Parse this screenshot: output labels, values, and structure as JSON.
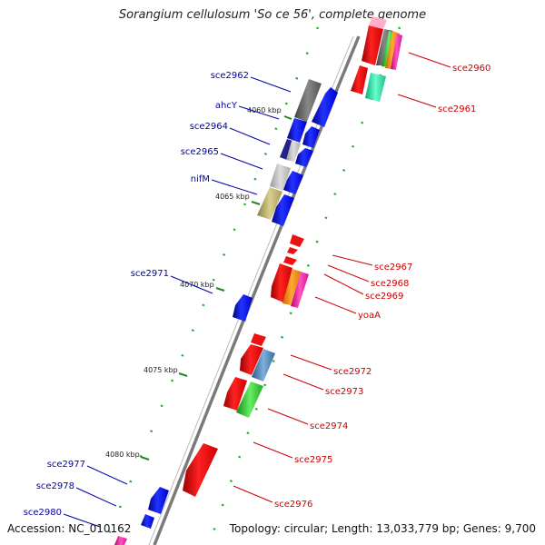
{
  "title": "Sorangium cellulosum 'So ce 56', complete genome",
  "footer": {
    "accession": "Accession: NC_010162",
    "summary": "Topology: circular; Length: 13,033,779 bp; Genes: 9,700"
  },
  "colors": {
    "backbone": "#888888",
    "forward_label": "#cc0000",
    "reverse_label": "#0000aa",
    "tick": "#228822"
  },
  "ticks": [
    "4060 kbp",
    "4065 kbp",
    "4070 kbp",
    "4075 kbp",
    "4080 kbp"
  ],
  "forward_labels": [
    "sce2960",
    "sce2961",
    "sce2967",
    "sce2968",
    "sce2969",
    "yoaA",
    "sce2972",
    "sce2973",
    "sce2974",
    "sce2975",
    "sce2976"
  ],
  "reverse_labels": [
    "sce2962",
    "ahcY",
    "sce2964",
    "sce2965",
    "nifM",
    "sce2971",
    "sce2977",
    "sce2978",
    "sce2980"
  ]
}
